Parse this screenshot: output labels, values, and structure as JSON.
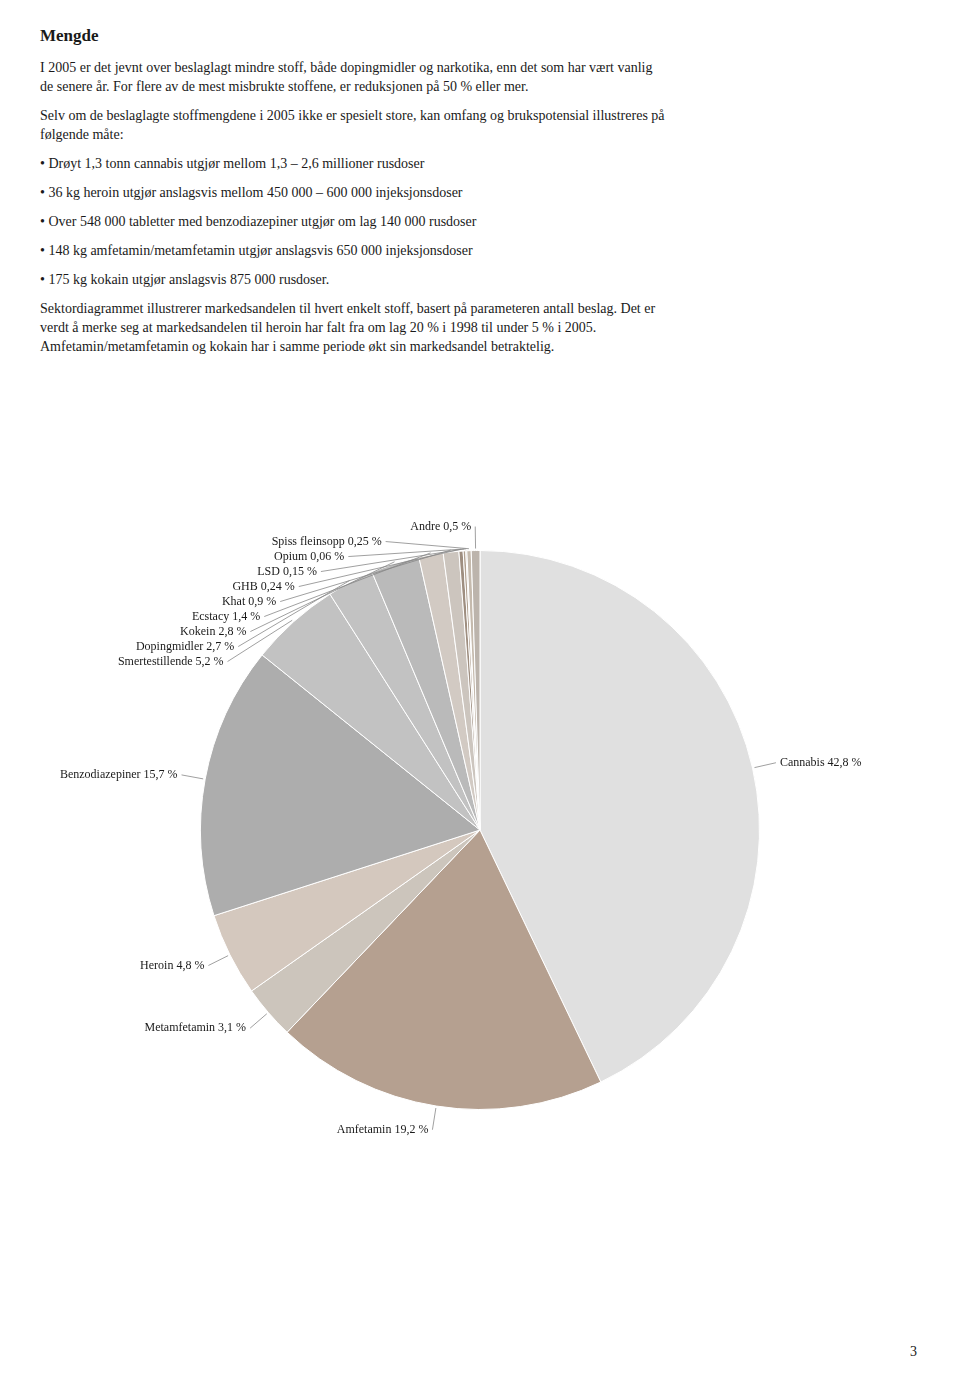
{
  "chart_data": {
    "type": "pie",
    "title": "Mengde",
    "annotations": [
      [
        "I 2005 er det jevnt over beslaglagt mindre stoff, både dopingmidler og narkotika, enn det som har vært vanlig",
        "de senere år. For flere av de mest misbrukte stoffene, er reduksjonen på 50 % eller mer."
      ],
      [
        "Selv om de beslaglagte stoffmengdene i 2005 ikke er spesielt store, kan omfang og brukspotensial illustreres på",
        "følgende måte:"
      ],
      [
        "• Drøyt 1,3 tonn cannabis utgjør mellom 1,3 – 2,6 millioner rusdoser"
      ],
      [
        "• 36 kg heroin utgjør anslagsvis mellom 450 000 – 600 000 injeksjonsdoser"
      ],
      [
        "• Over 548 000 tabletter med benzodiazepiner utgjør om lag 140 000 rusdoser"
      ],
      [
        "• 148 kg amfetamin/metamfetamin utgjør anslagsvis 650 000 injeksjonsdoser"
      ],
      [
        "• 175 kg kokain utgjør anslagsvis 875 000 rusdoser."
      ],
      [
        "Sektordiagrammet illustrerer markedsandelen til hvert enkelt stoff, basert på parameteren antall beslag. Det er",
        "verdt å merke seg at markedsandelen til heroin har falt fra om lag 20 % i 1998 til under 5 % i 2005.",
        "Amfetamin/metamfetamin og kokain har i samme periode økt sin markedsandel betraktelig."
      ],
      [
        "3"
      ]
    ],
    "categories": [
      "Cannabis 42,8 %",
      "Amfetamin 19,2 %",
      "Metamfetamin 3,1 %",
      "Heroin 4,8 %",
      "Benzodiazepiner 15,7 %",
      "Smertestillende 5,2 %",
      "Dopingmidler 2,7 %",
      "Kokein 2,8 %",
      "Ecstacy 1,4 %",
      "Khat 0,9 %",
      "GHB 0,24 %",
      "LSD 0,15 %",
      "Opium 0,06 %",
      "Spiss fleinsopp 0,25 %",
      "Andre 0,5 %"
    ],
    "values": [
      42.8,
      19.2,
      3.1,
      4.8,
      15.7,
      5.2,
      2.7,
      2.8,
      1.4,
      0.9,
      0.24,
      0.15,
      0.06,
      0.25,
      0.5
    ],
    "colors": [
      "#e0e0e0",
      "#b5a090",
      "#ccc5bc",
      "#d4c8be",
      "#adadad",
      "#c2c2c2",
      "#c2c2c2",
      "#bababa",
      "#d2cac3",
      "#ccc5be",
      "#9e8e80",
      "#b0a090",
      "#a09080",
      "#c5baad",
      "#bcb4ac"
    ],
    "legend": false
  }
}
